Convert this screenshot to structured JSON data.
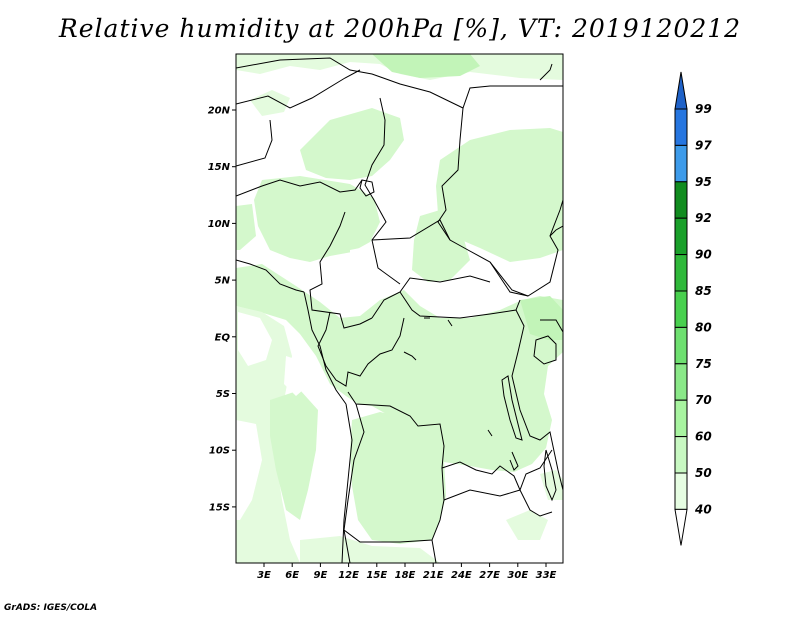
{
  "title": "Relative humidity at 200hPa [%], VT: 2019120212",
  "credit": "GrADS: IGES/COLA",
  "map": {
    "lat_ticks": [
      {
        "label": "20N",
        "value": 20
      },
      {
        "label": "15N",
        "value": 15
      },
      {
        "label": "10N",
        "value": 10
      },
      {
        "label": "5N",
        "value": 5
      },
      {
        "label": "EQ",
        "value": 0
      },
      {
        "label": "5S",
        "value": -5
      },
      {
        "label": "10S",
        "value": -10
      },
      {
        "label": "15S",
        "value": -15
      }
    ],
    "lon_ticks": [
      {
        "label": "3E",
        "value": 3
      },
      {
        "label": "6E",
        "value": 6
      },
      {
        "label": "9E",
        "value": 9
      },
      {
        "label": "12E",
        "value": 12
      },
      {
        "label": "15E",
        "value": 15
      },
      {
        "label": "18E",
        "value": 18
      },
      {
        "label": "21E",
        "value": 21
      },
      {
        "label": "24E",
        "value": 24
      },
      {
        "label": "27E",
        "value": 27
      },
      {
        "label": "30E",
        "value": 30
      },
      {
        "label": "33E",
        "value": 33
      }
    ]
  },
  "colorbar": {
    "levels": [
      {
        "label": "40",
        "color": "#ffffff"
      },
      {
        "label": "50",
        "color": "#e6fde2"
      },
      {
        "label": "60",
        "color": "#c8f8c2"
      },
      {
        "label": "70",
        "color": "#a8f4a0"
      },
      {
        "label": "75",
        "color": "#8ae888"
      },
      {
        "label": "80",
        "color": "#6ee070"
      },
      {
        "label": "85",
        "color": "#48d04e"
      },
      {
        "label": "90",
        "color": "#2fb83a"
      },
      {
        "label": "92",
        "color": "#1aa02a"
      },
      {
        "label": "95",
        "color": "#118c1f"
      },
      {
        "label": "97",
        "color": "#3d9bea"
      },
      {
        "label": "99",
        "color": "#2676e0"
      }
    ],
    "top_color": "#1f62c8"
  },
  "colors": {
    "moist_light": "#d4f8cc",
    "moist_mid": "#c2f4b8",
    "moist_pale": "#e4fbde"
  }
}
